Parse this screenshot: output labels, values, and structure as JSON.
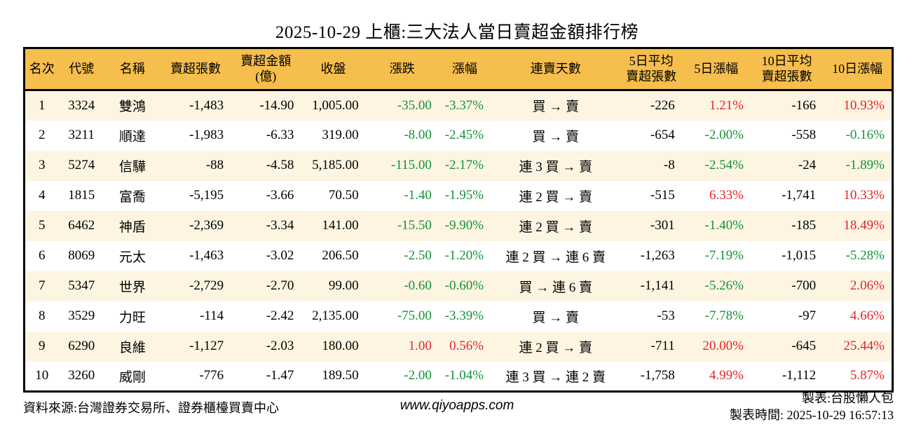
{
  "title": "2025-10-29 上櫃:三大法人當日賣超金額排行榜",
  "colors": {
    "up_red": "#e3242a",
    "down_green": "#15923a",
    "header_bg": "#f6be4c",
    "row_stripe": "#fdf5e2",
    "border": "#000000"
  },
  "chart_data": {
    "type": "table",
    "title": "2025-10-29 上櫃:三大法人當日賣超金額排行榜",
    "headers": [
      "名次",
      "代號",
      "名稱",
      "賣超張數",
      "賣超金額\n(億)",
      "收盤",
      "漲跌",
      "漲幅",
      "連賣天數",
      "5日平均\n賣超張數",
      "5日漲幅",
      "10日平均\n賣超張數",
      "10日漲幅"
    ],
    "rows": [
      {
        "rank": "1",
        "code": "3324",
        "name": "雙鴻",
        "sell_qty": "-1,483",
        "sell_amt": "-14.90",
        "close": "1,005.00",
        "chg": "-35.00",
        "chg_color": "down",
        "chg_pct": "-3.37%",
        "chg_pct_color": "down",
        "streak": "買 → 賣",
        "avg5": "-226",
        "pct5": "1.21%",
        "pct5_color": "up",
        "avg10": "-166",
        "pct10": "10.93%",
        "pct10_color": "up"
      },
      {
        "rank": "2",
        "code": "3211",
        "name": "順達",
        "sell_qty": "-1,983",
        "sell_amt": "-6.33",
        "close": "319.00",
        "chg": "-8.00",
        "chg_color": "down",
        "chg_pct": "-2.45%",
        "chg_pct_color": "down",
        "streak": "買 → 賣",
        "avg5": "-654",
        "pct5": "-2.00%",
        "pct5_color": "down",
        "avg10": "-558",
        "pct10": "-0.16%",
        "pct10_color": "down"
      },
      {
        "rank": "3",
        "code": "5274",
        "name": "信驊",
        "sell_qty": "-88",
        "sell_amt": "-4.58",
        "close": "5,185.00",
        "chg": "-115.00",
        "chg_color": "down",
        "chg_pct": "-2.17%",
        "chg_pct_color": "down",
        "streak": "連 3 買 → 賣",
        "avg5": "-8",
        "pct5": "-2.54%",
        "pct5_color": "down",
        "avg10": "-24",
        "pct10": "-1.89%",
        "pct10_color": "down"
      },
      {
        "rank": "4",
        "code": "1815",
        "name": "富喬",
        "sell_qty": "-5,195",
        "sell_amt": "-3.66",
        "close": "70.50",
        "chg": "-1.40",
        "chg_color": "down",
        "chg_pct": "-1.95%",
        "chg_pct_color": "down",
        "streak": "連 2 買 → 賣",
        "avg5": "-515",
        "pct5": "6.33%",
        "pct5_color": "up",
        "avg10": "-1,741",
        "pct10": "10.33%",
        "pct10_color": "up"
      },
      {
        "rank": "5",
        "code": "6462",
        "name": "神盾",
        "sell_qty": "-2,369",
        "sell_amt": "-3.34",
        "close": "141.00",
        "chg": "-15.50",
        "chg_color": "down",
        "chg_pct": "-9.90%",
        "chg_pct_color": "down",
        "streak": "連 2 買 → 賣",
        "avg5": "-301",
        "pct5": "-1.40%",
        "pct5_color": "down",
        "avg10": "-185",
        "pct10": "18.49%",
        "pct10_color": "up"
      },
      {
        "rank": "6",
        "code": "8069",
        "name": "元太",
        "sell_qty": "-1,463",
        "sell_amt": "-3.02",
        "close": "206.50",
        "chg": "-2.50",
        "chg_color": "down",
        "chg_pct": "-1.20%",
        "chg_pct_color": "down",
        "streak": "連 2 買 → 連 6 賣",
        "avg5": "-1,263",
        "pct5": "-7.19%",
        "pct5_color": "down",
        "avg10": "-1,015",
        "pct10": "-5.28%",
        "pct10_color": "down"
      },
      {
        "rank": "7",
        "code": "5347",
        "name": "世界",
        "sell_qty": "-2,729",
        "sell_amt": "-2.70",
        "close": "99.00",
        "chg": "-0.60",
        "chg_color": "down",
        "chg_pct": "-0.60%",
        "chg_pct_color": "down",
        "streak": "買 → 連 6 賣",
        "avg5": "-1,141",
        "pct5": "-5.26%",
        "pct5_color": "down",
        "avg10": "-700",
        "pct10": "2.06%",
        "pct10_color": "up"
      },
      {
        "rank": "8",
        "code": "3529",
        "name": "力旺",
        "sell_qty": "-114",
        "sell_amt": "-2.42",
        "close": "2,135.00",
        "chg": "-75.00",
        "chg_color": "down",
        "chg_pct": "-3.39%",
        "chg_pct_color": "down",
        "streak": "買 → 賣",
        "avg5": "-53",
        "pct5": "-7.78%",
        "pct5_color": "down",
        "avg10": "-97",
        "pct10": "4.66%",
        "pct10_color": "up"
      },
      {
        "rank": "9",
        "code": "6290",
        "name": "良維",
        "sell_qty": "-1,127",
        "sell_amt": "-2.03",
        "close": "180.00",
        "chg": "1.00",
        "chg_color": "up",
        "chg_pct": "0.56%",
        "chg_pct_color": "up",
        "streak": "連 2 買 → 賣",
        "avg5": "-711",
        "pct5": "20.00%",
        "pct5_color": "up",
        "avg10": "-645",
        "pct10": "25.44%",
        "pct10_color": "up"
      },
      {
        "rank": "10",
        "code": "3260",
        "name": "威剛",
        "sell_qty": "-776",
        "sell_amt": "-1.47",
        "close": "189.50",
        "chg": "-2.00",
        "chg_color": "down",
        "chg_pct": "-1.04%",
        "chg_pct_color": "down",
        "streak": "連 3 買 → 連 2 賣",
        "avg5": "-1,758",
        "pct5": "4.99%",
        "pct5_color": "up",
        "avg10": "-1,112",
        "pct10": "5.87%",
        "pct10_color": "up"
      }
    ]
  },
  "footer": {
    "source": "資料來源:台灣證券交易所、證券櫃檯買賣中心",
    "site": "www.qiyoapps.com",
    "maker": "製表:台股懶人包",
    "made_time": "製表時間: 2025-10-29 16:57:13"
  }
}
